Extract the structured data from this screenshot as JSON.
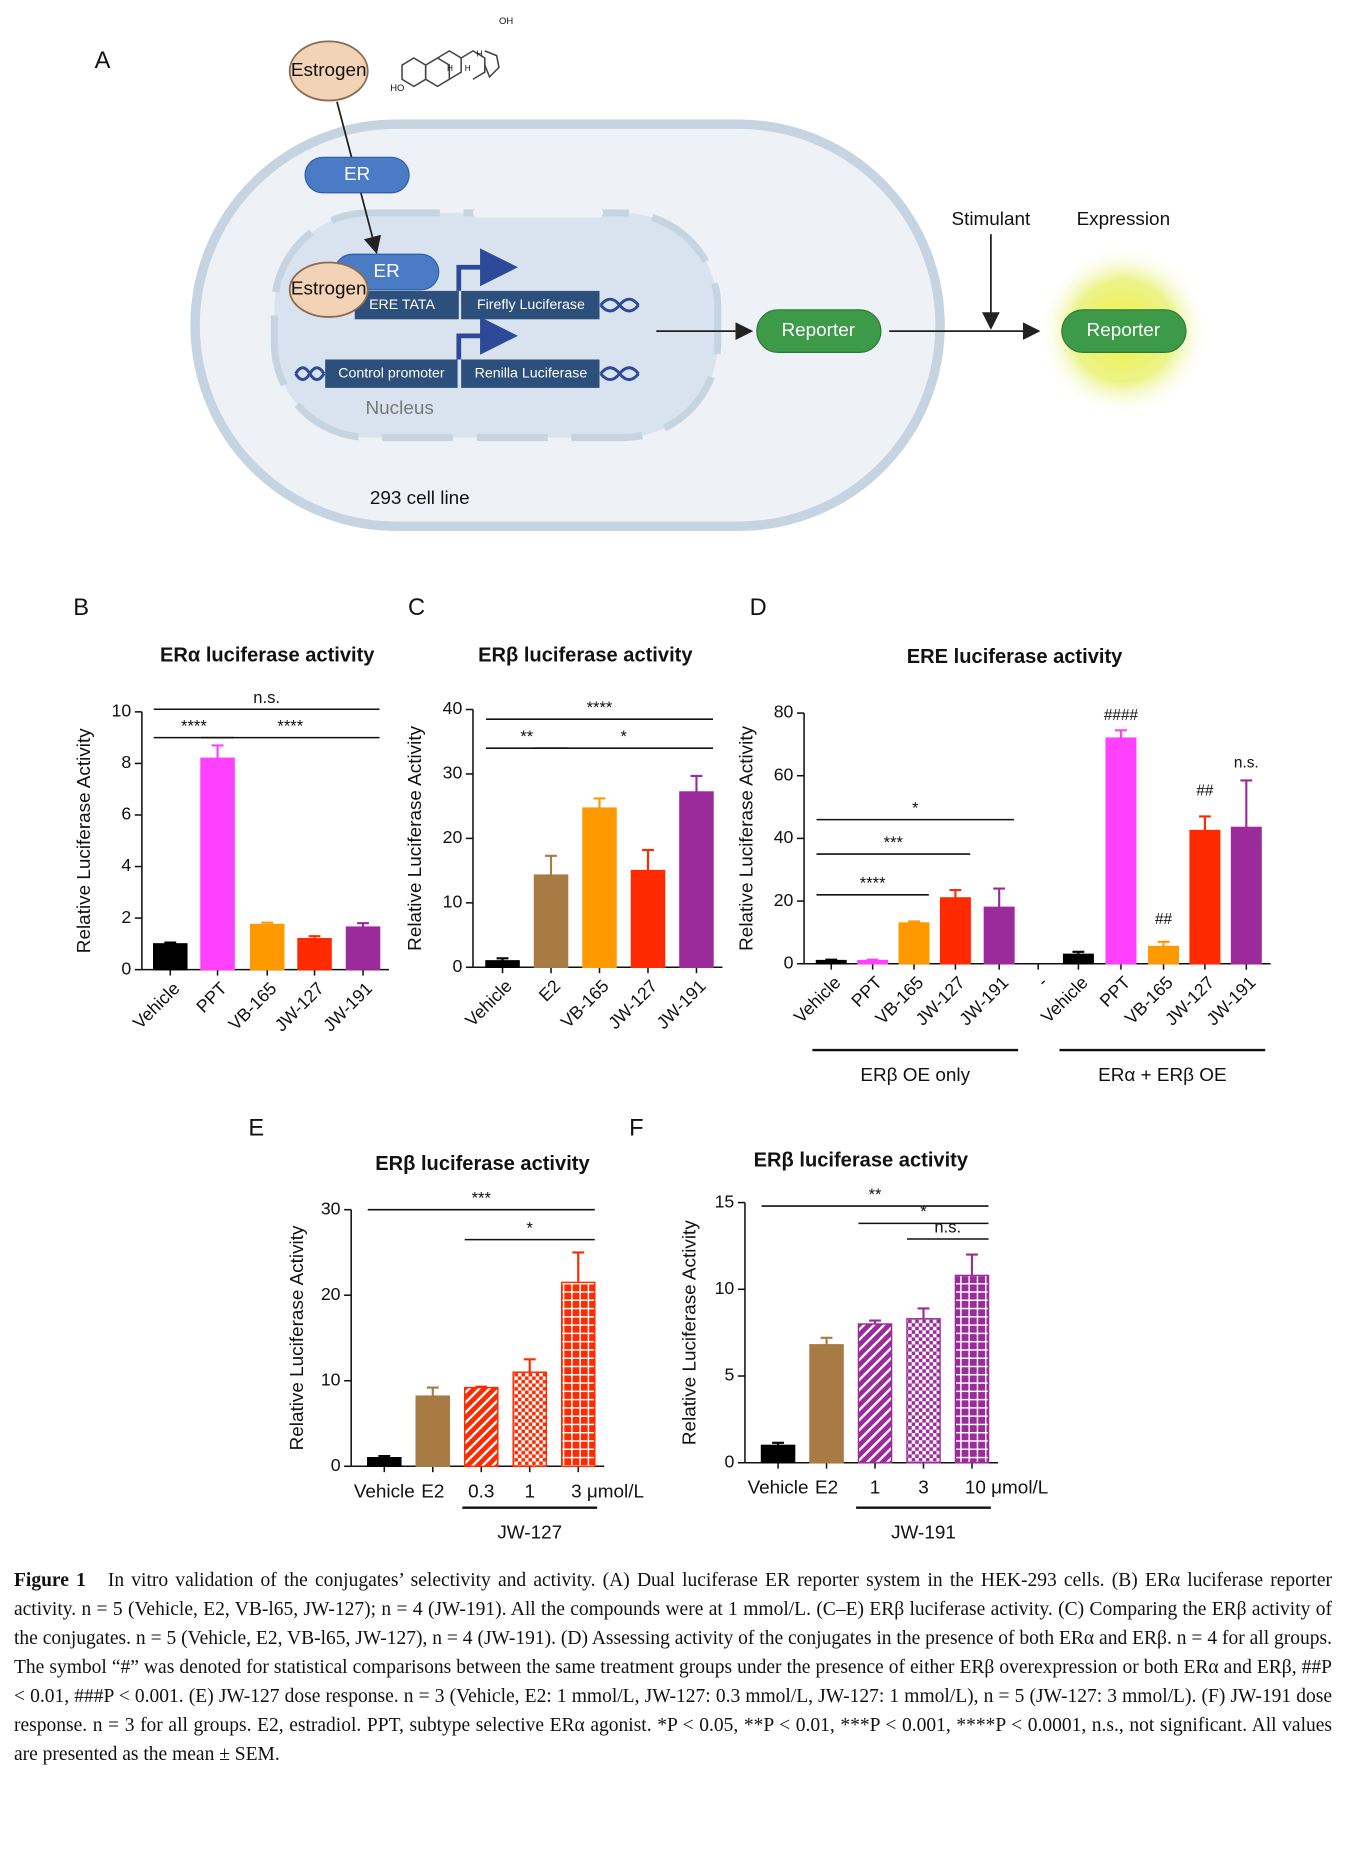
{
  "panels": [
    "A",
    "B",
    "C",
    "D",
    "E",
    "F"
  ],
  "diagram": {
    "estrogen": "Estrogen",
    "er": "ER",
    "er_bound": "ER",
    "estrogen_bound": "Estrogen",
    "ere_tata": "ERE TATA",
    "firefly": "Firefly Luciferase",
    "control": "Control promoter",
    "renilla": "Renilla Luciferase",
    "nucleus": "Nucleus",
    "cell_line": "293 cell line",
    "reporter": "Reporter",
    "stimulant": "Stimulant",
    "expression": "Expression",
    "reporter_expressed": "Reporter",
    "oh": "OH",
    "ho": "HO",
    "h": [
      "H",
      "H",
      "H"
    ]
  },
  "chart_data": [
    {
      "type": "bar",
      "title": "ERα luciferase activity",
      "ylabel": "Relative Luciferase Activity",
      "categories": [
        "Vehicle",
        "PPT",
        "VB-165",
        "JW-127",
        "JW-191"
      ],
      "values": [
        1.0,
        8.2,
        1.75,
        1.2,
        1.65
      ],
      "errors": [
        0.05,
        0.5,
        0.07,
        0.1,
        0.15
      ],
      "colors": [
        "#000000",
        "#ff40ff",
        "#ff9900",
        "#ff2a00",
        "#9b2a9b"
      ],
      "ylim": [
        0,
        10
      ],
      "yticks": [
        0,
        2,
        4,
        6,
        8,
        10
      ],
      "brackets": [
        {
          "from": 0,
          "to": 4,
          "y": 10.1,
          "label": "n.s."
        },
        {
          "from": 0,
          "to": 1,
          "y": 9.0,
          "label": "****"
        },
        {
          "from": 1,
          "to": 4,
          "y": 9.0,
          "label": "****"
        }
      ]
    },
    {
      "type": "bar",
      "title": "ERβ luciferase activity",
      "ylabel": "Relative Luciferase Activity",
      "categories": [
        "Vehicle",
        "E2",
        "VB-165",
        "JW-127",
        "JW-191"
      ],
      "values": [
        1.0,
        14.3,
        24.7,
        15.0,
        27.2
      ],
      "errors": [
        0.4,
        3.0,
        1.5,
        3.2,
        2.5
      ],
      "colors": [
        "#000000",
        "#a87a44",
        "#ff9900",
        "#ff2a00",
        "#9b2a9b"
      ],
      "ylim": [
        0,
        40
      ],
      "yticks": [
        0,
        10,
        20,
        30,
        40
      ],
      "brackets": [
        {
          "from": 0,
          "to": 4,
          "y": 38.5,
          "label": "****"
        },
        {
          "from": 0,
          "to": 1,
          "y": 34,
          "label": "**"
        },
        {
          "from": 1,
          "to": 4,
          "y": 34,
          "label": "*"
        }
      ]
    },
    {
      "type": "bar",
      "title": "ERE luciferase activity",
      "ylabel": "Relative Luciferase Activity",
      "categories": [
        "Vehicle",
        "PPT",
        "VB-165",
        "JW-127",
        "JW-191",
        "-",
        "Vehicle",
        "PPT",
        "VB-165",
        "JW-127",
        "JW-191"
      ],
      "values": [
        1.0,
        1.0,
        13.0,
        21.0,
        18.0,
        null,
        3.0,
        72.0,
        5.5,
        42.5,
        43.5
      ],
      "errors": [
        0.3,
        0.3,
        0.5,
        2.5,
        6.0,
        null,
        0.8,
        2.5,
        1.5,
        4.5,
        15.0
      ],
      "colors": [
        "#000000",
        "#ff40ff",
        "#ff9900",
        "#ff2a00",
        "#9b2a9b",
        "#000000",
        "#000000",
        "#ff40ff",
        "#ff9900",
        "#ff2a00",
        "#9b2a9b"
      ],
      "ylim": [
        0,
        80
      ],
      "yticks": [
        0,
        20,
        40,
        60,
        80
      ],
      "brackets": [
        {
          "from": 0,
          "to": 2,
          "y": 22,
          "label": "****"
        },
        {
          "from": 0,
          "to": 3,
          "y": 35,
          "label": "***"
        },
        {
          "from": 0,
          "to": 4,
          "y": 46,
          "label": "*"
        }
      ],
      "annotations": [
        {
          "at": 7,
          "y": 79,
          "label": "####"
        },
        {
          "at": 8,
          "y": 14,
          "label": "##"
        },
        {
          "at": 9,
          "y": 55,
          "label": "##"
        },
        {
          "at": 10,
          "y": 64,
          "label": "n.s."
        }
      ],
      "groups": [
        {
          "from": 0,
          "to": 4,
          "label": "ERβ OE only"
        },
        {
          "from": 6,
          "to": 10,
          "label": "ERα + ERβ OE"
        }
      ]
    },
    {
      "type": "bar",
      "title": "ERβ luciferase activity",
      "ylabel": "Relative Luciferase Activity",
      "categories": [
        "Vehicle",
        "E2",
        "0.3",
        "1",
        "3 μmol/L"
      ],
      "values": [
        1.0,
        8.2,
        9.2,
        11.0,
        21.5
      ],
      "errors": [
        0.2,
        1.0,
        0.1,
        1.5,
        3.5
      ],
      "colors": [
        "#000000",
        "#a87a44",
        "#ff2a00",
        "#ff2a00",
        "#ff2a00"
      ],
      "patterns": [
        "solid",
        "solid",
        "hatch",
        "checker",
        "grid"
      ],
      "ylim": [
        0,
        30
      ],
      "yticks": [
        0,
        10,
        20,
        30
      ],
      "brackets": [
        {
          "from": 0,
          "to": 4,
          "y": 30,
          "label": "***"
        },
        {
          "from": 2,
          "to": 4,
          "y": 26.5,
          "label": "*"
        }
      ],
      "groups": [
        {
          "from": 2,
          "to": 4,
          "label": "JW-127"
        }
      ]
    },
    {
      "type": "bar",
      "title": "ERβ luciferase activity",
      "ylabel": "Relative Luciferase Activity",
      "categories": [
        "Vehicle",
        "E2",
        "1",
        "3",
        "10 μmol/L"
      ],
      "values": [
        1.0,
        6.8,
        8.0,
        8.3,
        10.8
      ],
      "errors": [
        0.15,
        0.4,
        0.2,
        0.6,
        1.2
      ],
      "colors": [
        "#000000",
        "#a87a44",
        "#9b2a9b",
        "#9b2a9b",
        "#9b2a9b"
      ],
      "patterns": [
        "solid",
        "solid",
        "hatch",
        "checker",
        "grid"
      ],
      "ylim": [
        0,
        15
      ],
      "yticks": [
        0,
        5,
        10,
        15
      ],
      "brackets": [
        {
          "from": 0,
          "to": 4,
          "y": 14.8,
          "label": "**"
        },
        {
          "from": 2,
          "to": 4,
          "y": 13.8,
          "label": "*"
        },
        {
          "from": 3,
          "to": 4,
          "y": 12.9,
          "label": "n.s."
        }
      ],
      "groups": [
        {
          "from": 2,
          "to": 4,
          "label": "JW-191"
        }
      ]
    }
  ],
  "caption": {
    "label": "Figure 1",
    "text": "In vitro validation of the conjugates’ selectivity and activity. (A) Dual luciferase ER reporter system in the HEK-293 cells. (B) ERα luciferase reporter activity. n = 5 (Vehicle, E2, VB-l65, JW-127); n = 4 (JW-191). All the compounds were at 1 mmol/L. (C–E) ERβ luciferase activity. (C) Comparing the ERβ activity of the conjugates. n = 5 (Vehicle, E2, VB-l65, JW-127), n = 4 (JW-191). (D) Assessing activity of the conjugates in the presence of both ERα and ERβ. n = 4 for all groups. The symbol “#” was denoted for statistical comparisons between the same treatment groups under the presence of either ERβ overexpression or both ERα and ERβ, ##P < 0.01, ###P < 0.001. (E) JW-127 dose response. n = 3 (Vehicle, E2: 1 mmol/L, JW-127: 0.3 mmol/L, JW-127: 1 mmol/L), n = 5 (JW-127: 3 mmol/L). (F) JW-191 dose response. n = 3 for all groups. E2, estradiol. PPT, subtype selective ERα agonist. *P < 0.05, **P < 0.01, ***P < 0.001, ****P < 0.0001, n.s., not significant. All values are presented as the mean ± SEM."
  }
}
